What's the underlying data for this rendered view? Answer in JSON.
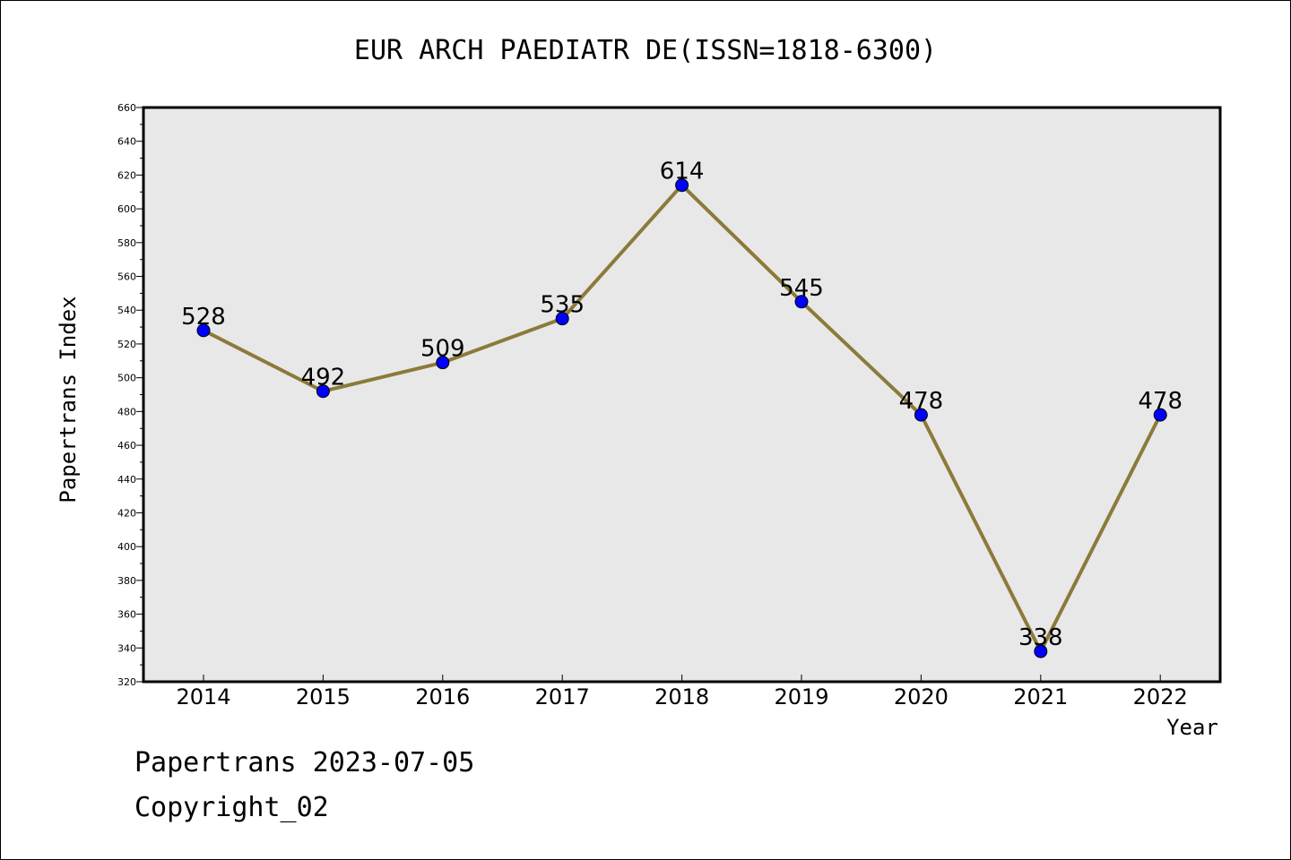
{
  "chart_data": {
    "type": "line",
    "title": "EUR ARCH PAEDIATR DE(ISSN=1818-6300)",
    "xlabel": "Year",
    "ylabel": "Papertrans Index",
    "categories": [
      "2014",
      "2015",
      "2016",
      "2017",
      "2018",
      "2019",
      "2020",
      "2021",
      "2022"
    ],
    "values": [
      528,
      492,
      509,
      535,
      614,
      545,
      478,
      338,
      478
    ],
    "ylim": [
      320,
      660
    ],
    "yticks": [
      320,
      340,
      360,
      380,
      400,
      420,
      440,
      460,
      480,
      500,
      520,
      540,
      560,
      580,
      600,
      620,
      640,
      660
    ],
    "grid": false,
    "line_color": "#8c7a3a",
    "marker_color": "#0000ff",
    "plot_background": "#e8e8e8"
  },
  "footer": {
    "line1": "Papertrans 2023-07-05",
    "line2": "Copyright_02"
  }
}
